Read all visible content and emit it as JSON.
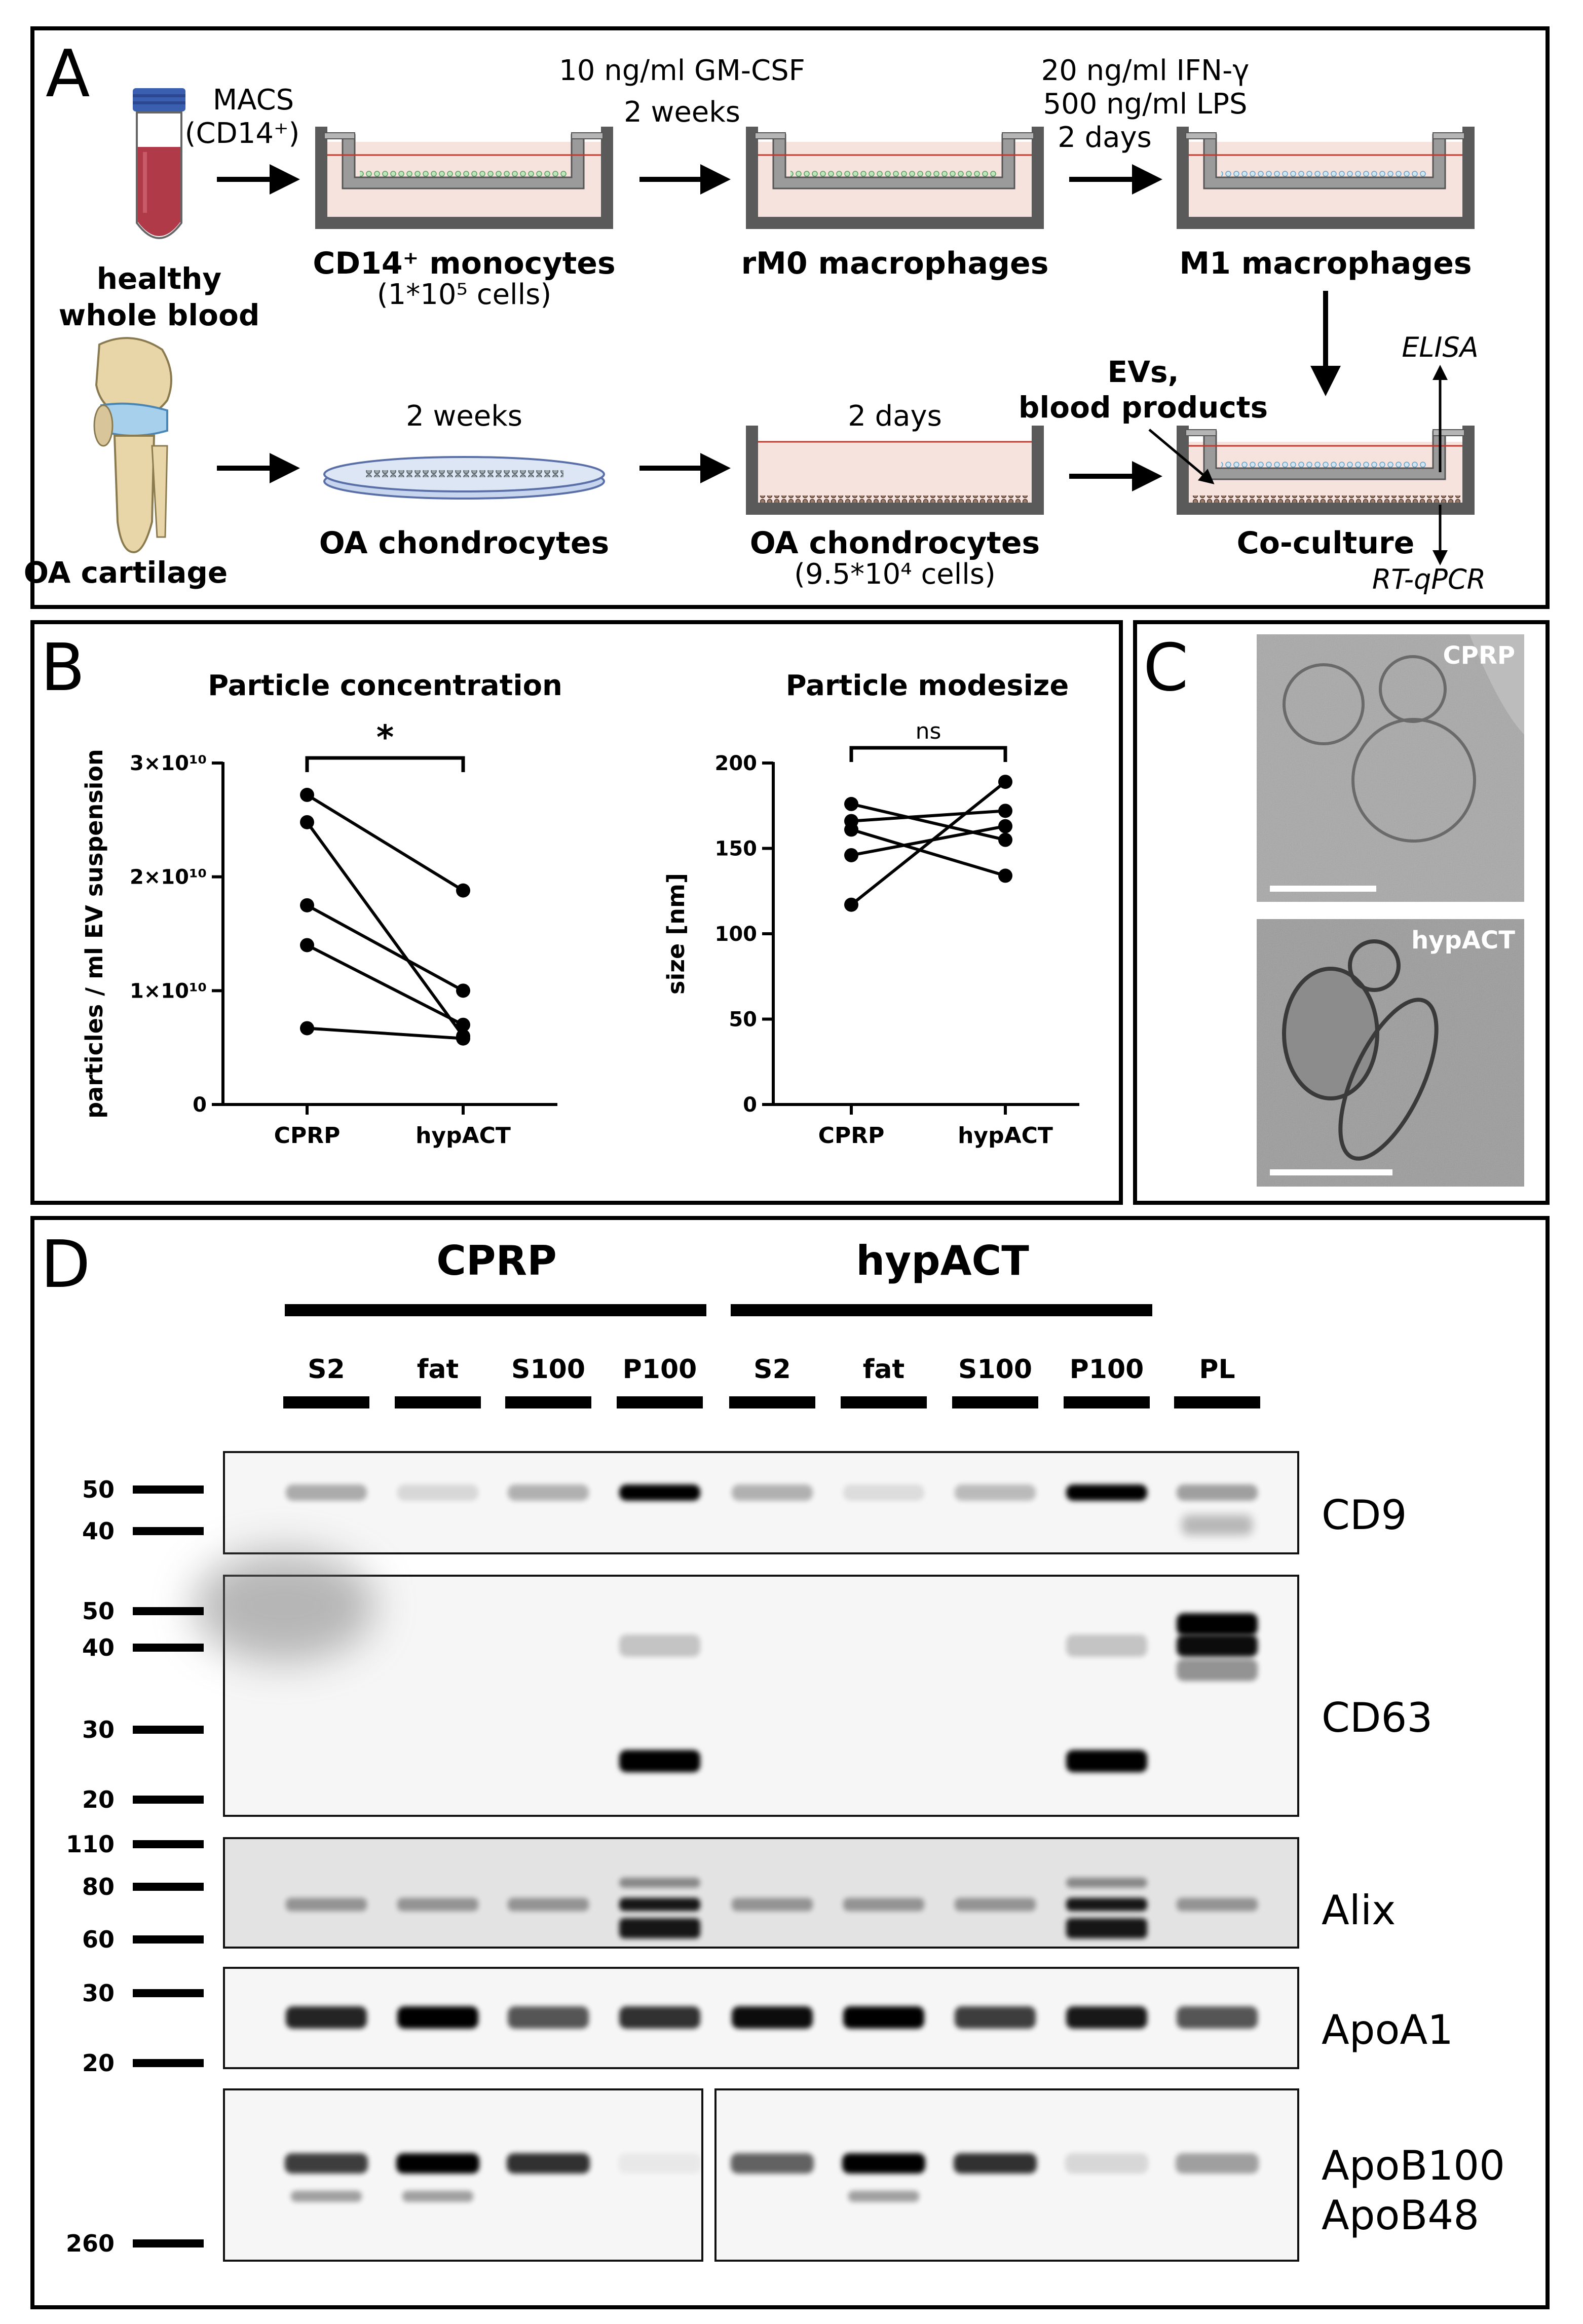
{
  "panel_letters": {
    "a": "A",
    "b": "B",
    "c": "C",
    "d": "D"
  },
  "panel_a": {
    "macs": "MACS",
    "macs_sub": "(CD14⁺)",
    "blood": [
      "healthy",
      "whole blood"
    ],
    "monocytes": "CD14⁺ monocytes",
    "monocytes_cells": "(1*10⁵ cells)",
    "gmcsf": "10 ng/ml GM-CSF",
    "gmcsf_time": "2 weeks",
    "rm0": "rM0 macrophages",
    "ifn": "20 ng/ml IFN-γ",
    "lps": "500 ng/ml LPS",
    "m1_time": "2 days",
    "m1": "M1 macrophages",
    "oa_cartilage": "OA cartilage",
    "chondro_time1": "2 weeks",
    "oa_chondro1": "OA chondrocytes",
    "chondro_time2": "2 days",
    "oa_chondro2": "OA chondrocytes",
    "chondro_cells": "(9.5*10⁴ cells)",
    "evs": [
      "EVs,",
      "blood products"
    ],
    "elisa": "ELISA",
    "coculture": "Co-culture",
    "rtqpcr": "RT-qPCR",
    "colors": {
      "medium": "#f7e3de",
      "cells_green": "#a8d8a8",
      "cells_blue": "#a9cde3",
      "blood": "#b03a48",
      "cap": "#3a5fb0"
    }
  },
  "panel_b": {
    "chart_data": [
      {
        "type": "line",
        "title": "Particle concentration",
        "ylabel": "particles / ml EV suspension",
        "categories": [
          "CPRP",
          "hypACT"
        ],
        "y_ticks": [
          "0",
          "1×10¹⁰",
          "2×10¹⁰",
          "3×10¹⁰"
        ],
        "y_tick_values": [
          0,
          10000000000.0,
          20000000000.0,
          30000000000.0
        ],
        "ylim": [
          0,
          30000000000.0
        ],
        "significance": "*",
        "series": [
          {
            "values": [
              27200000000.0,
              18800000000.0
            ]
          },
          {
            "values": [
              24800000000.0,
              6000000000.0
            ]
          },
          {
            "values": [
              17500000000.0,
              10000000000.0
            ]
          },
          {
            "values": [
              14000000000.0,
              7000000000.0
            ]
          },
          {
            "values": [
              6700000000.0,
              5800000000.0
            ]
          }
        ]
      },
      {
        "type": "line",
        "title": "Particle modesize",
        "ylabel": "size [nm]",
        "categories": [
          "CPRP",
          "hypACT"
        ],
        "y_ticks": [
          "0",
          "50",
          "100",
          "150",
          "200"
        ],
        "y_tick_values": [
          0,
          50,
          100,
          150,
          200
        ],
        "ylim": [
          0,
          200
        ],
        "significance": "ns",
        "series": [
          {
            "values": [
              176,
              155
            ]
          },
          {
            "values": [
              166,
              172
            ]
          },
          {
            "values": [
              161,
              134
            ]
          },
          {
            "values": [
              146,
              163
            ]
          },
          {
            "values": [
              117,
              189
            ]
          }
        ]
      }
    ]
  },
  "panel_c": {
    "top_label": "CPRP",
    "bottom_label": "hypACT"
  },
  "panel_d": {
    "group1": "CPRP",
    "group2": "hypACT",
    "lanes": [
      "S2",
      "fat",
      "S100",
      "P100",
      "S2",
      "fat",
      "S100",
      "P100",
      "PL"
    ],
    "blots": [
      {
        "name": "CD9",
        "markers": [
          "50",
          "40"
        ]
      },
      {
        "name": "CD63",
        "markers": [
          "50",
          "40",
          "30",
          "20"
        ]
      },
      {
        "name": "Alix",
        "markers": [
          "110",
          "80",
          "60"
        ]
      },
      {
        "name": "ApoA1",
        "markers": [
          "30",
          "20"
        ]
      },
      {
        "name": "ApoB100",
        "name2": "ApoB48",
        "markers": [
          "260"
        ]
      }
    ]
  }
}
